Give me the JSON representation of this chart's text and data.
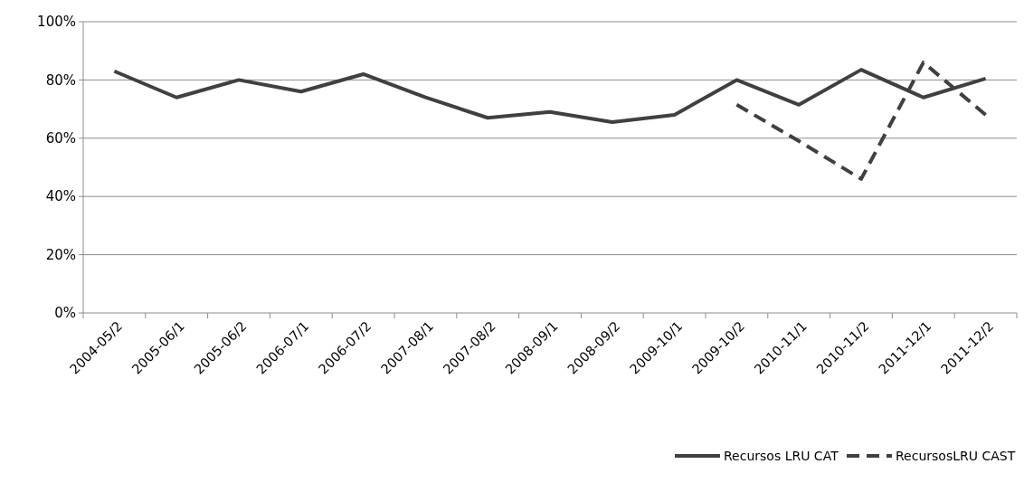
{
  "chart_data": {
    "type": "line",
    "categories": [
      "2004-05/2",
      "2005-06/1",
      "2005-06/2",
      "2006-07/1",
      "2006-07/2",
      "2007-08/1",
      "2007-08/2",
      "2008-09/1",
      "2008-09/2",
      "2009-10/1",
      "2009-10/2",
      "2010-11/1",
      "2010-11/2",
      "2011-12/1",
      "2011-12/2"
    ],
    "series": [
      {
        "name": "Recursos LRU CAT",
        "color": "#404040",
        "line_style": "solid",
        "values": [
          83,
          74,
          80,
          76,
          82,
          74,
          67,
          69,
          65.5,
          68,
          80,
          71.5,
          83.5,
          74,
          80.5
        ]
      },
      {
        "name": "RecursosLRU CAST",
        "color": "#404040",
        "line_style": "dashed",
        "values": [
          null,
          null,
          null,
          null,
          null,
          null,
          null,
          null,
          null,
          null,
          71.5,
          59,
          46,
          86,
          68
        ]
      }
    ],
    "ylim": [
      0,
      100
    ],
    "yticks": [
      {
        "value": 0,
        "label": "0%"
      },
      {
        "value": 20,
        "label": "20%"
      },
      {
        "value": 40,
        "label": "40%"
      },
      {
        "value": 60,
        "label": "60%"
      },
      {
        "value": 80,
        "label": "80%"
      },
      {
        "value": 100,
        "label": "100%"
      }
    ],
    "grid": "y",
    "legend": "bottom right",
    "marker": "none"
  }
}
